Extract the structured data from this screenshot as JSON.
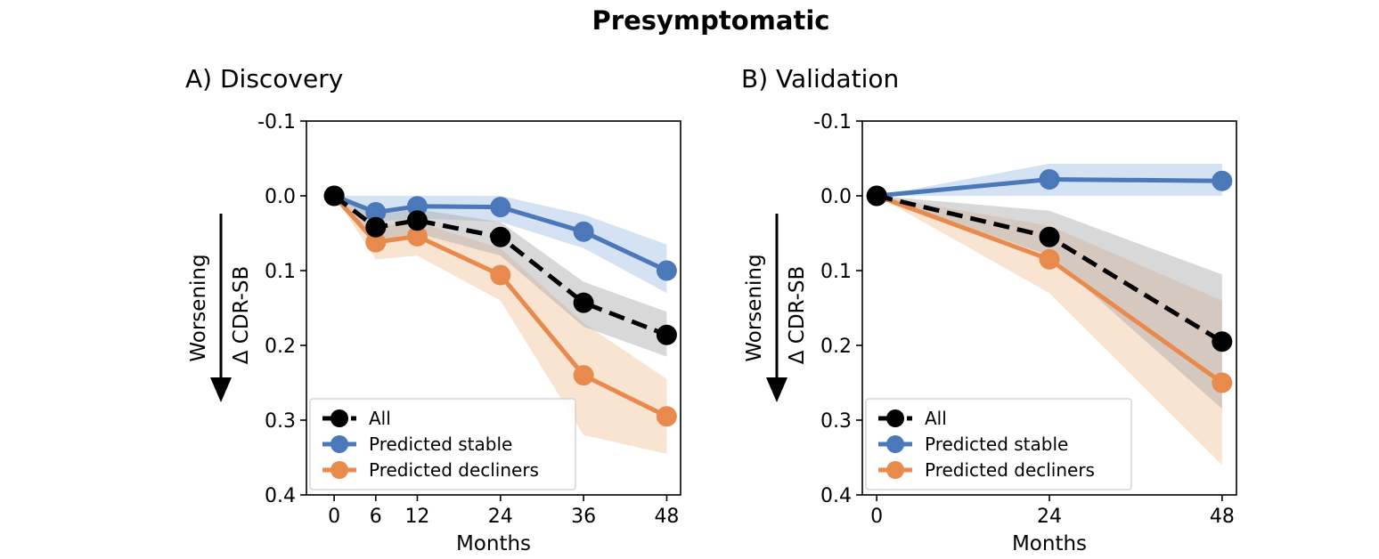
{
  "figure": {
    "title": "Presymptomatic",
    "arrow_label": "Worsening"
  },
  "colors": {
    "all": "#000000",
    "stable": "#4a78b8",
    "decliners": "#e88a4e",
    "stable_band": "#c6d8ef",
    "decliners_band": "#f6d8bd",
    "all_band": "#a8a8a8"
  },
  "chart_data": [
    {
      "type": "line",
      "title": "A) Discovery",
      "xlabel": "Months",
      "ylabel": "Δ CDR-SB",
      "y_inverted": true,
      "xlim": [
        -4,
        50
      ],
      "ylim": [
        -0.1,
        0.4
      ],
      "xticks": [
        0,
        6,
        12,
        24,
        36,
        48
      ],
      "yticks": [
        -0.1,
        0.0,
        0.1,
        0.2,
        0.3,
        0.4
      ],
      "ytick_labels": [
        "-0.1",
        "0.0",
        "0.1",
        "0.2",
        "0.3",
        "0.4"
      ],
      "legend_position": "lower-left",
      "series": [
        {
          "name": "All",
          "key": "all",
          "style": "dashed",
          "x": [
            0,
            6,
            12,
            24,
            36,
            48
          ],
          "y": [
            0.0,
            0.042,
            0.033,
            0.055,
            0.143,
            0.186
          ],
          "lower": [
            0.0,
            0.025,
            0.018,
            0.035,
            0.115,
            0.155
          ],
          "upper": [
            0.0,
            0.06,
            0.05,
            0.08,
            0.175,
            0.215
          ]
        },
        {
          "name": "Predicted stable",
          "key": "stable",
          "style": "solid",
          "x": [
            0,
            6,
            12,
            24,
            36,
            48
          ],
          "y": [
            0.0,
            0.022,
            0.014,
            0.015,
            0.048,
            0.1
          ],
          "lower": [
            0.0,
            0.0,
            0.0,
            0.0,
            0.025,
            0.065
          ],
          "upper": [
            0.0,
            0.035,
            0.03,
            0.035,
            0.07,
            0.13
          ]
        },
        {
          "name": "Predicted decliners",
          "key": "decliners",
          "style": "solid",
          "x": [
            0,
            6,
            12,
            24,
            36,
            48
          ],
          "y": [
            0.0,
            0.062,
            0.054,
            0.106,
            0.24,
            0.295
          ],
          "lower": [
            0.0,
            0.04,
            0.035,
            0.07,
            0.17,
            0.245
          ],
          "upper": [
            0.0,
            0.085,
            0.08,
            0.14,
            0.32,
            0.345
          ]
        }
      ]
    },
    {
      "type": "line",
      "title": "B) Validation",
      "xlabel": "Months",
      "ylabel": "Δ CDR-SB",
      "y_inverted": true,
      "xlim": [
        -2,
        50
      ],
      "ylim": [
        -0.1,
        0.4
      ],
      "xticks": [
        0,
        24,
        48
      ],
      "yticks": [
        -0.1,
        0.0,
        0.1,
        0.2,
        0.3,
        0.4
      ],
      "ytick_labels": [
        "-0.1",
        "0.0",
        "0.1",
        "0.2",
        "0.3",
        "0.4"
      ],
      "legend_position": "lower-left",
      "series": [
        {
          "name": "All",
          "key": "all",
          "style": "dashed",
          "x": [
            0,
            24,
            48
          ],
          "y": [
            0.0,
            0.055,
            0.195
          ],
          "lower": [
            0.0,
            0.02,
            0.105
          ],
          "upper": [
            0.0,
            0.08,
            0.285
          ]
        },
        {
          "name": "Predicted stable",
          "key": "stable",
          "style": "solid",
          "x": [
            0,
            24,
            48
          ],
          "y": [
            0.0,
            -0.022,
            -0.02
          ],
          "lower": [
            0.0,
            -0.043,
            -0.043
          ],
          "upper": [
            0.0,
            0.0,
            0.0
          ]
        },
        {
          "name": "Predicted decliners",
          "key": "decliners",
          "style": "solid",
          "x": [
            0,
            24,
            48
          ],
          "y": [
            0.0,
            0.085,
            0.25
          ],
          "lower": [
            0.0,
            0.04,
            0.14
          ],
          "upper": [
            0.0,
            0.13,
            0.36
          ]
        }
      ]
    }
  ]
}
